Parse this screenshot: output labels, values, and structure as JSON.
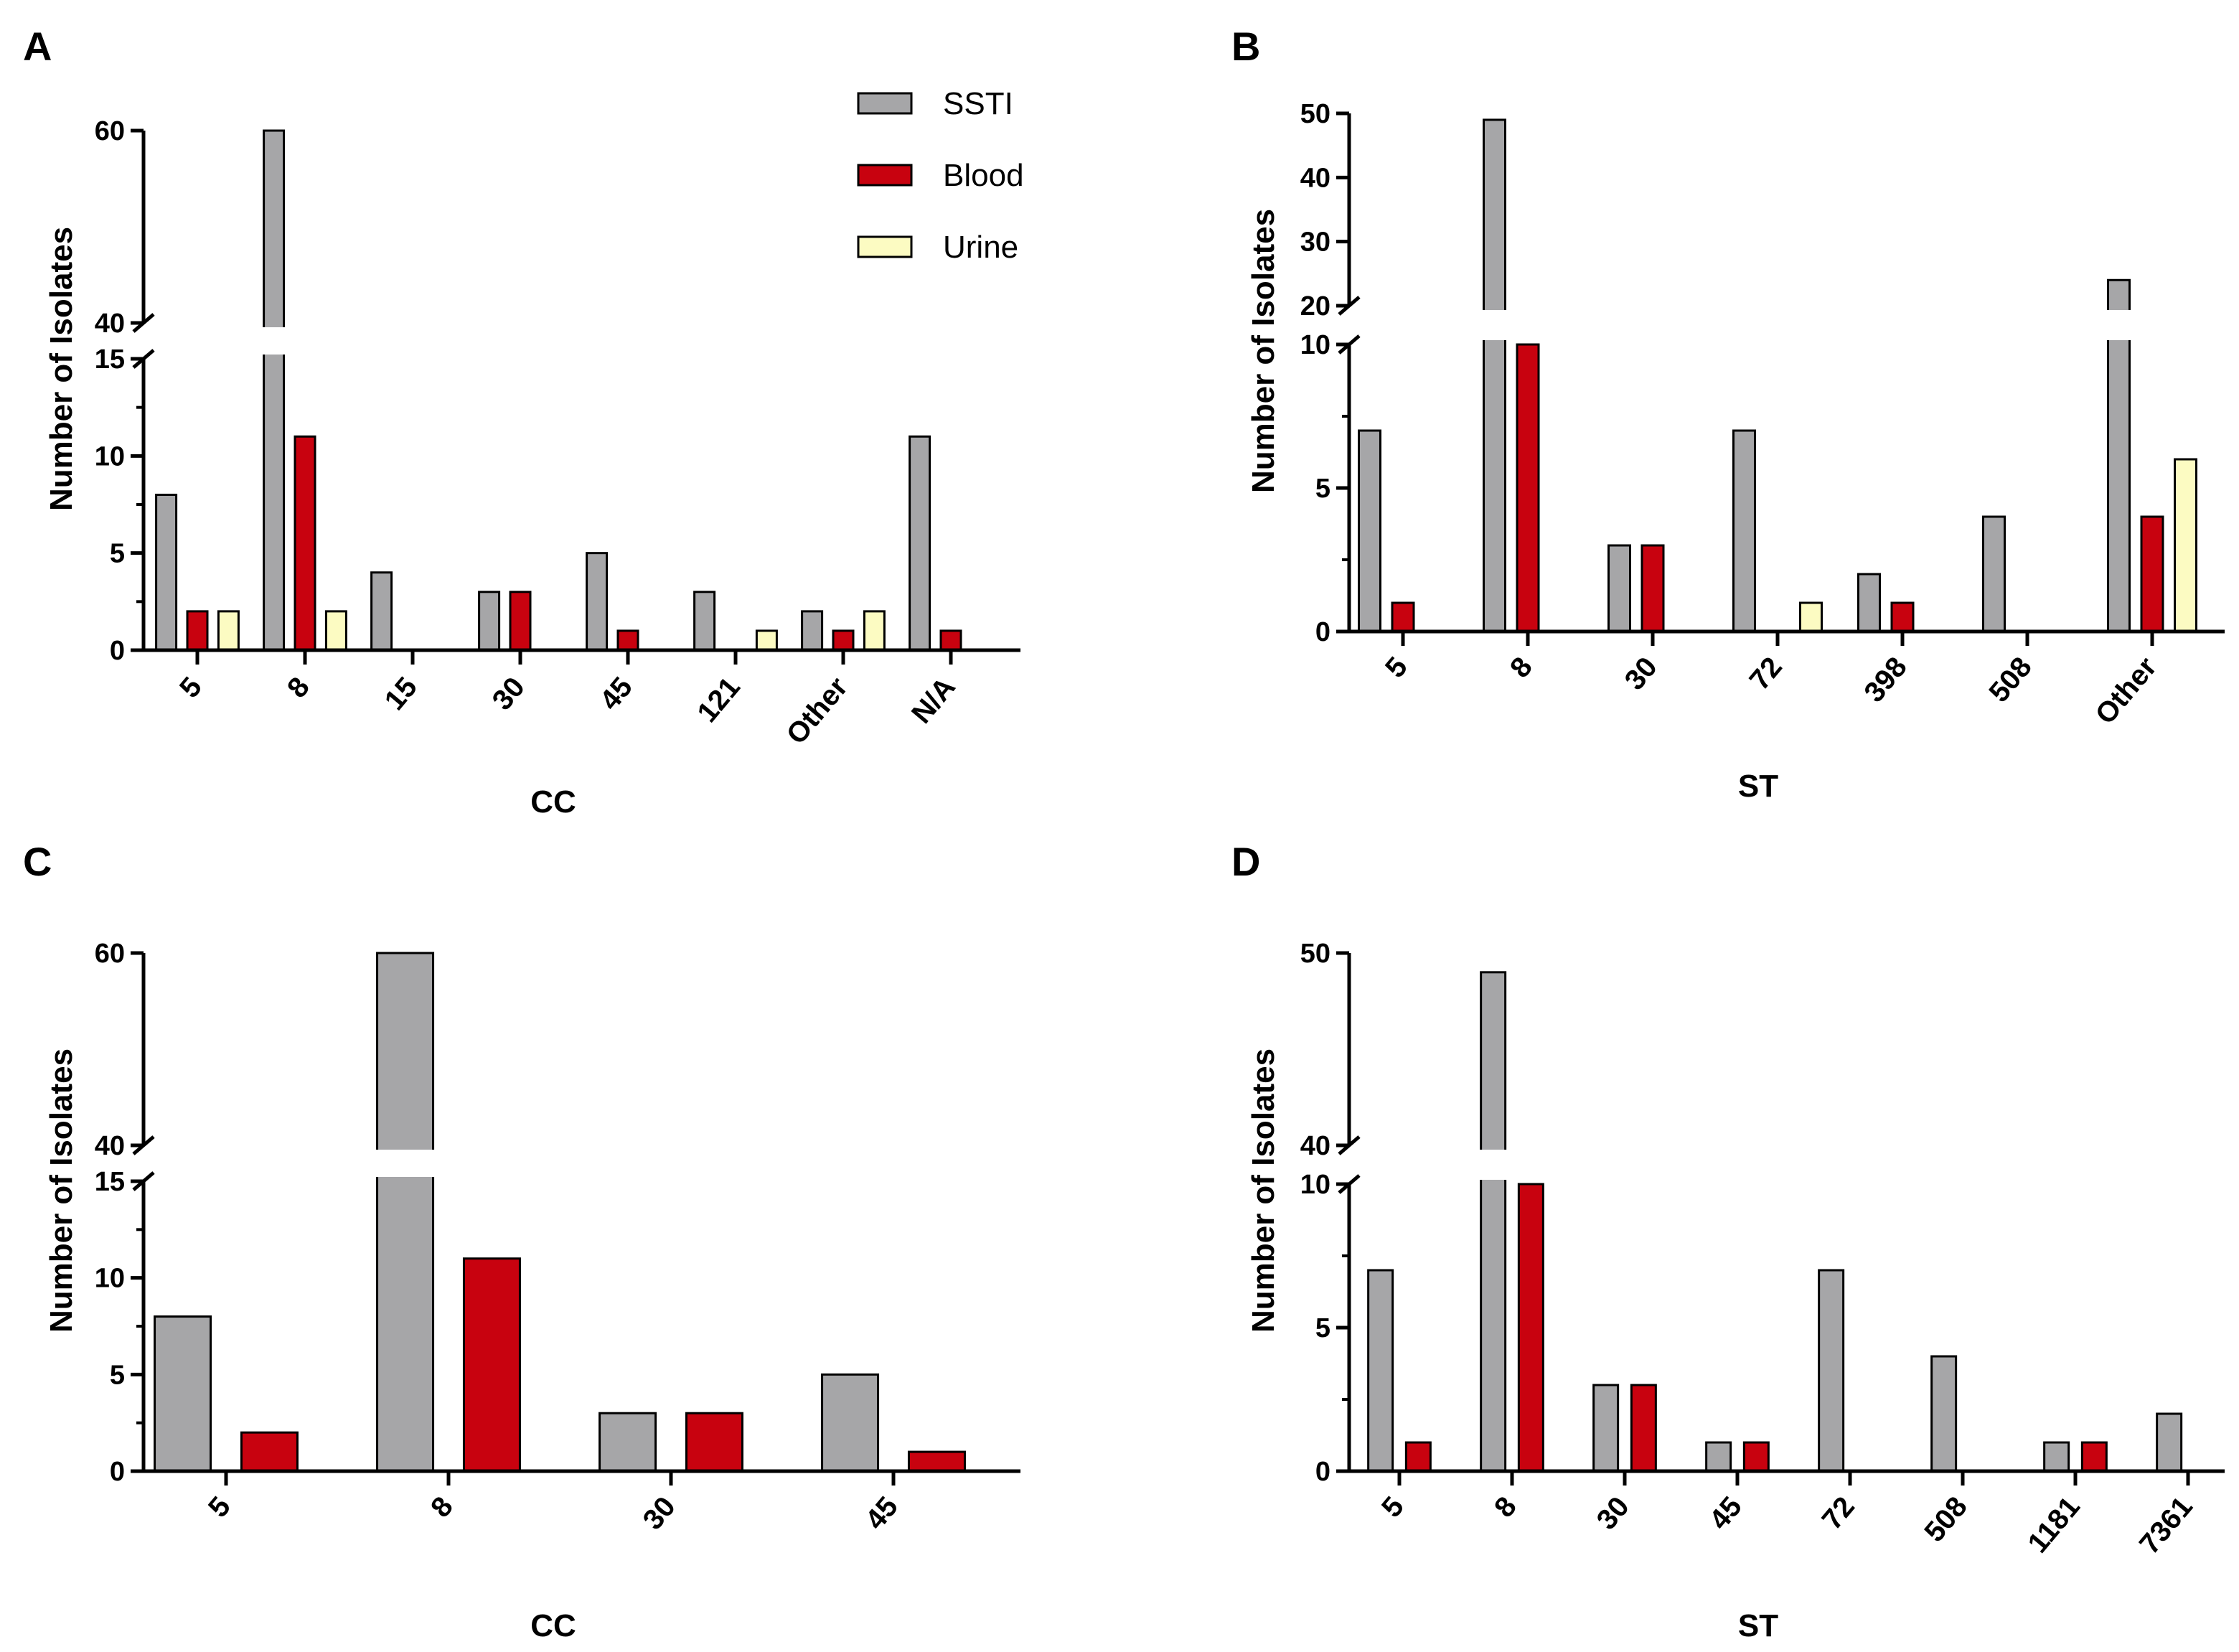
{
  "colors": {
    "SSTI": "#a6a6a8",
    "Blood": "#c8020f",
    "Urine": "#fcfbc2",
    "axis": "#000000"
  },
  "legend": [
    {
      "name": "SSTI",
      "color": "#a6a6a8"
    },
    {
      "name": "Blood",
      "color": "#c8020f"
    },
    {
      "name": "Urine",
      "color": "#fcfbc2"
    }
  ],
  "chart_data": [
    {
      "panel": "A",
      "type": "bar",
      "title": "",
      "xlabel": "CC",
      "ylabel": "Number of Isolates",
      "broken_axis": {
        "lower": [
          0,
          15
        ],
        "upper": [
          40,
          60
        ]
      },
      "lower_ticks": [
        0,
        5,
        10,
        15
      ],
      "upper_ticks": [
        40,
        60
      ],
      "categories": [
        "5",
        "8",
        "15",
        "30",
        "45",
        "121",
        "Other",
        "N/A"
      ],
      "series": [
        {
          "name": "SSTI",
          "values": [
            8,
            60,
            4,
            3,
            5,
            3,
            2,
            11
          ]
        },
        {
          "name": "Blood",
          "values": [
            2,
            11,
            0,
            3,
            1,
            0,
            1,
            1
          ]
        },
        {
          "name": "Urine",
          "values": [
            2,
            2,
            0,
            0,
            0,
            1,
            2,
            0
          ]
        }
      ],
      "legend": "top-right"
    },
    {
      "panel": "B",
      "type": "bar",
      "title": "",
      "xlabel": "ST",
      "ylabel": "Number of Isolates",
      "broken_axis": {
        "lower": [
          0,
          10
        ],
        "upper": [
          20,
          50
        ]
      },
      "lower_ticks": [
        0,
        5,
        10
      ],
      "upper_ticks": [
        20,
        30,
        40,
        50
      ],
      "categories": [
        "5",
        "8",
        "30",
        "72",
        "398",
        "508",
        "Other"
      ],
      "series": [
        {
          "name": "SSTI",
          "values": [
            7,
            49,
            3,
            7,
            2,
            4,
            24
          ]
        },
        {
          "name": "Blood",
          "values": [
            1,
            10,
            3,
            0,
            1,
            0,
            4
          ]
        },
        {
          "name": "Urine",
          "values": [
            0,
            0,
            0,
            1,
            0,
            0,
            6
          ]
        }
      ]
    },
    {
      "panel": "C",
      "type": "bar",
      "title": "",
      "xlabel": "CC",
      "ylabel": "Number of Isolates",
      "broken_axis": {
        "lower": [
          0,
          15
        ],
        "upper": [
          40,
          60
        ]
      },
      "lower_ticks": [
        0,
        5,
        10,
        15
      ],
      "upper_ticks": [
        40,
        60
      ],
      "categories": [
        "5",
        "8",
        "30",
        "45"
      ],
      "series": [
        {
          "name": "SSTI",
          "values": [
            8,
            60,
            3,
            5
          ]
        },
        {
          "name": "Blood",
          "values": [
            2,
            11,
            3,
            1
          ]
        }
      ]
    },
    {
      "panel": "D",
      "type": "bar",
      "title": "",
      "xlabel": "ST",
      "ylabel": "Number of Isolates",
      "broken_axis": {
        "lower": [
          0,
          10
        ],
        "upper": [
          40,
          50
        ]
      },
      "lower_ticks": [
        0,
        5,
        10
      ],
      "upper_ticks": [
        40,
        50
      ],
      "categories": [
        "5",
        "8",
        "30",
        "45",
        "72",
        "508",
        "1181",
        "7361"
      ],
      "series": [
        {
          "name": "SSTI",
          "values": [
            7,
            49,
            3,
            1,
            7,
            4,
            1,
            2
          ]
        },
        {
          "name": "Blood",
          "values": [
            1,
            10,
            3,
            1,
            0,
            0,
            1,
            0
          ]
        }
      ]
    }
  ]
}
